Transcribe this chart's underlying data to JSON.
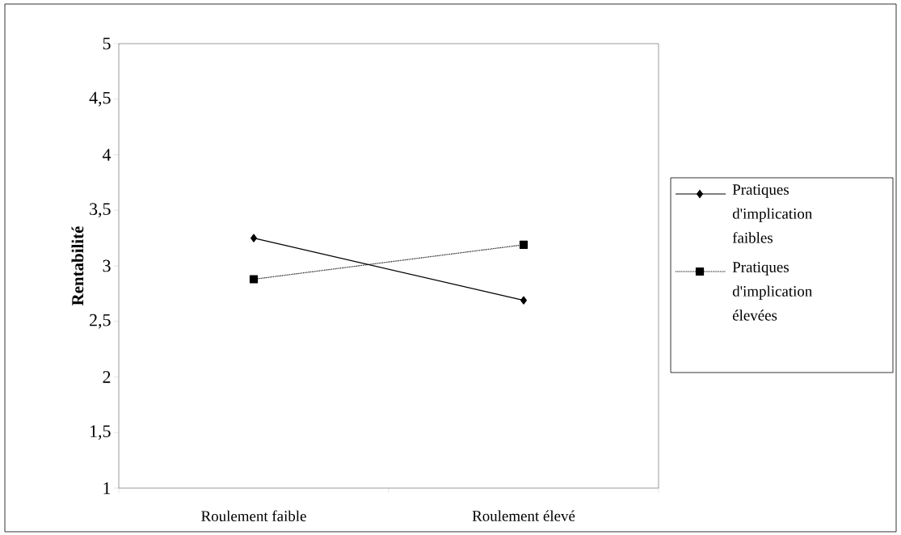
{
  "chart_data": {
    "type": "line",
    "ylabel": "Rentabilité",
    "categories": [
      "Roulement faible",
      "Roulement élevé"
    ],
    "series": [
      {
        "name": "Pratiques d'implication faibles",
        "color": "#000000",
        "values": [
          3.25,
          2.69
        ],
        "marker": "diamond",
        "line_style": "solid"
      },
      {
        "name": "Pratiques d'implication élevées",
        "color": "#000000",
        "values": [
          2.88,
          3.19
        ],
        "marker": "square",
        "line_style": "dotted"
      }
    ],
    "ylim": [
      1,
      5
    ],
    "yticks": [
      {
        "value": 1,
        "label": "1"
      },
      {
        "value": 1.5,
        "label": "1,5"
      },
      {
        "value": 2,
        "label": "2"
      },
      {
        "value": 2.5,
        "label": "2,5"
      },
      {
        "value": 3,
        "label": "3"
      },
      {
        "value": 3.5,
        "label": "3,5"
      },
      {
        "value": 4,
        "label": "4"
      },
      {
        "value": 4.5,
        "label": "4,5"
      },
      {
        "value": 5,
        "label": "5"
      }
    ],
    "grid": false,
    "legend": "right"
  }
}
